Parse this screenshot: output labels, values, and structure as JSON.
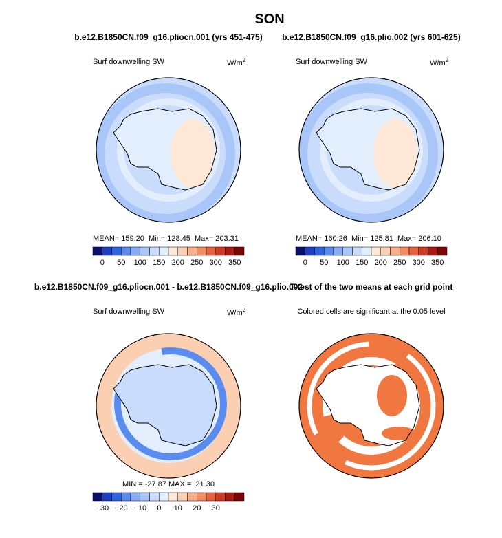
{
  "title": "SON",
  "panels": [
    {
      "title": "b.e12.B1850CN.f09_g16.pliocn.001 (yrs 451-475)",
      "left_label": "Surf downwelling SW",
      "units": "W/m",
      "units_sup": "2",
      "stats": "MEAN= 159.20  Min= 128.45  Max= 203.31",
      "colorbar": {
        "labels": [
          "0",
          "50",
          "100",
          "150",
          "200",
          "250",
          "300",
          "350"
        ]
      }
    },
    {
      "title": "b.e12.B1850CN.f09_g16.plio.002 (yrs 601-625)",
      "left_label": "Surf downwelling SW",
      "units": "W/m",
      "units_sup": "2",
      "stats": "MEAN= 160.26  Min= 125.81  Max= 206.10",
      "colorbar": {
        "labels": [
          "0",
          "50",
          "100",
          "150",
          "200",
          "250",
          "300",
          "350"
        ]
      }
    },
    {
      "title": "b.e12.B1850CN.f09_g16.pliocn.001 - b.e12.B1850CN.f09_g16.plio.002",
      "left_label": "Surf downwelling SW",
      "units": "W/m",
      "units_sup": "2",
      "stats": "MIN = -27.87 MAX =  21.30",
      "colorbar": {
        "labels": [
          "−30",
          "−20",
          "−10",
          "0",
          "10",
          "20",
          "30"
        ]
      }
    },
    {
      "title": "T-test of the two means at each grid point",
      "left_label": "Colored cells are significant at the 0.05 level"
    }
  ],
  "colorbar_colors": [
    "#08106e",
    "#1c3fc4",
    "#2f64e0",
    "#5a8cf0",
    "#86adf5",
    "#a9c6f8",
    "#c9dcfb",
    "#e3eefd",
    "#fde8d8",
    "#fbcfb2",
    "#f8af8a",
    "#f38b63",
    "#e8623f",
    "#d03b26",
    "#a91a12",
    "#7a0606"
  ]
}
